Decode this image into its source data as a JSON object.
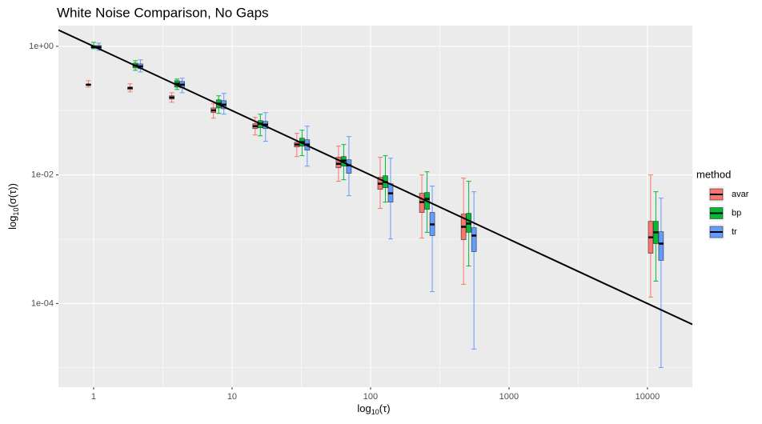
{
  "chart_data": {
    "type": "boxplot",
    "title": "White Noise Comparison, No Gaps",
    "xlabel": [
      "log",
      "10",
      "(τ)"
    ],
    "ylabel": [
      "log",
      "10",
      "(σ(τ))"
    ],
    "log_x": true,
    "log_y": true,
    "grid": true,
    "legend_title": "method",
    "legend_position": "right",
    "x": [
      1,
      2,
      4,
      8,
      16,
      32,
      64,
      128,
      256,
      512,
      11500
    ],
    "xlim": [
      0.557,
      21100
    ],
    "ylim": [
      5e-06,
      2.1
    ],
    "xticks": [
      1,
      10,
      100,
      1000,
      10000
    ],
    "xminor": [
      3.162,
      31.62,
      316.2,
      3162
    ],
    "yticks": [
      {
        "value": 1,
        "label": "1e+00"
      },
      {
        "value": 0.01,
        "label": "1e-02"
      },
      {
        "value": 0.0001,
        "label": "1e-04"
      }
    ],
    "yminor": [
      0.1,
      0.001,
      1e-05
    ],
    "line": {
      "color": "#000000",
      "x": [
        0.557,
        21100
      ],
      "y": [
        1.795,
        4.74e-05
      ]
    },
    "series": [
      {
        "name": "avar",
        "color": "#F8766D",
        "values": [
          [
            0.232,
            0.246,
            0.253,
            0.26,
            0.292
          ],
          [
            0.196,
            0.213,
            0.226,
            0.232,
            0.261
          ],
          [
            0.135,
            0.151,
            0.16,
            0.17,
            0.19
          ],
          [
            0.0762,
            0.0931,
            0.101,
            0.11,
            0.128
          ],
          [
            0.0418,
            0.0525,
            0.0573,
            0.0624,
            0.0784
          ],
          [
            0.0193,
            0.0272,
            0.0297,
            0.0323,
            0.0443
          ],
          [
            0.00796,
            0.0129,
            0.0149,
            0.0188,
            0.028
          ],
          [
            0.00301,
            0.00597,
            0.0073,
            0.00918,
            0.0188
          ],
          [
            0.00104,
            0.00261,
            0.00378,
            0.00518,
            0.01
          ],
          [
            0.000199,
            0.000986,
            0.00156,
            0.00246,
            0.00891
          ],
          [
            0.000126,
            0.000606,
            0.00107,
            0.0019,
            0.01
          ]
        ]
      },
      {
        "name": "bp",
        "color": "#00BA38",
        "values": [
          [
            0.918,
            0.944,
            0.972,
            1.029,
            1.154
          ],
          [
            0.424,
            0.462,
            0.503,
            0.548,
            0.598
          ],
          [
            0.213,
            0.232,
            0.261,
            0.292,
            0.31
          ],
          [
            0.0905,
            0.11,
            0.128,
            0.147,
            0.17
          ],
          [
            0.0406,
            0.0541,
            0.0624,
            0.07,
            0.0879
          ],
          [
            0.0199,
            0.028,
            0.0323,
            0.0373,
            0.0496
          ],
          [
            0.00842,
            0.0137,
            0.0167,
            0.0193,
            0.0297
          ],
          [
            0.00378,
            0.00633,
            0.00773,
            0.00973,
            0.0199
          ],
          [
            0.00128,
            0.00292,
            0.00424,
            0.00533,
            0.0112
          ],
          [
            0.000384,
            0.00128,
            0.00175,
            0.00253,
            0.00796
          ],
          [
            0.000223,
            0.000855,
            0.00128,
            0.0019,
            0.00548
          ]
        ]
      },
      {
        "name": "tr",
        "color": "#619CFF",
        "values": [
          [
            0.867,
            0.918,
            0.972,
            1.029,
            1.12
          ],
          [
            0.4,
            0.449,
            0.489,
            0.533,
            0.615
          ],
          [
            0.19,
            0.226,
            0.253,
            0.284,
            0.319
          ],
          [
            0.0882,
            0.107,
            0.124,
            0.143,
            0.185
          ],
          [
            0.0333,
            0.0525,
            0.0606,
            0.068,
            0.0931
          ],
          [
            0.0137,
            0.0243,
            0.0297,
            0.0352,
            0.0573
          ],
          [
            0.00475,
            0.0106,
            0.0141,
            0.0172,
            0.0395
          ],
          [
            0.00101,
            0.00378,
            0.00518,
            0.0073,
            0.0182
          ],
          [
            0.000153,
            0.00114,
            0.0017,
            0.00261,
            0.0067
          ],
          [
            1.96e-05,
            0.000642,
            0.00114,
            0.00151,
            0.00548
          ],
          [
            1.01e-05,
            0.000469,
            0.000855,
            0.00131,
            0.00436
          ]
        ]
      }
    ]
  }
}
